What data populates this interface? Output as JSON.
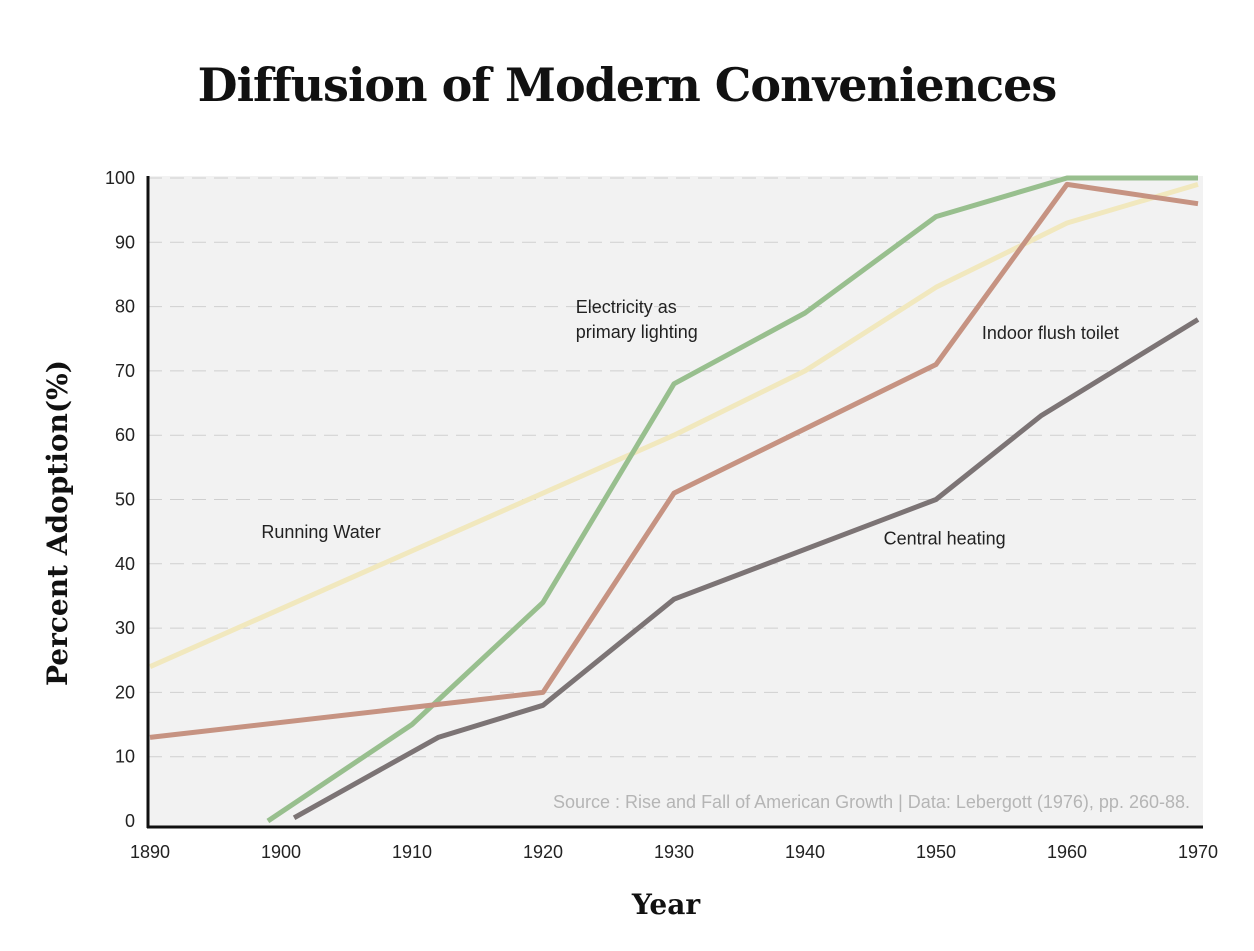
{
  "chart_data": {
    "type": "line",
    "title": "Diffusion of Modern Conveniences",
    "xlabel": "Year",
    "ylabel": "Percent Adoption(%)",
    "xlim": [
      1890,
      1970
    ],
    "ylim": [
      0,
      100
    ],
    "x_ticks": [
      1890,
      1900,
      1910,
      1920,
      1930,
      1940,
      1950,
      1960,
      1970
    ],
    "y_ticks": [
      0,
      10,
      20,
      30,
      40,
      50,
      60,
      70,
      80,
      90,
      100
    ],
    "grid": "horizontal dashed",
    "background": "#f2f2f2",
    "source": "Source : Rise and Fall of American Growth  |  Data: Lebergott (1976), pp. 260-88.",
    "series": [
      {
        "name": "Running Water",
        "color": "#f1e8be",
        "points": [
          [
            1890,
            24
          ],
          [
            1900,
            33
          ],
          [
            1910,
            42
          ],
          [
            1920,
            51
          ],
          [
            1930,
            60
          ],
          [
            1940,
            70
          ],
          [
            1950,
            83
          ],
          [
            1960,
            93
          ],
          [
            1970,
            99
          ]
        ]
      },
      {
        "name": "Electricity as primary lighting",
        "color": "#98bf8e",
        "points": [
          [
            1899,
            0
          ],
          [
            1910,
            15
          ],
          [
            1920,
            34
          ],
          [
            1930,
            68
          ],
          [
            1940,
            79
          ],
          [
            1950,
            94
          ],
          [
            1960,
            100
          ],
          [
            1970,
            100
          ]
        ]
      },
      {
        "name": "Indoor flush toilet",
        "color": "#c69382",
        "points": [
          [
            1890,
            13
          ],
          [
            1920,
            20
          ],
          [
            1930,
            51
          ],
          [
            1950,
            71
          ],
          [
            1960,
            99
          ],
          [
            1970,
            96
          ]
        ]
      },
      {
        "name": "Central heating",
        "color": "#7c7475",
        "points": [
          [
            1901,
            0.5
          ],
          [
            1912,
            13
          ],
          [
            1920,
            18
          ],
          [
            1930,
            34.5
          ],
          [
            1950,
            50
          ],
          [
            1958,
            63
          ],
          [
            1970,
            78
          ]
        ]
      }
    ],
    "annotations": [
      {
        "id": "running-water",
        "lines": [
          "Running Water"
        ],
        "x": 1898.5,
        "y": 44
      },
      {
        "id": "electricity",
        "lines": [
          "Electricity as",
          "primary lighting"
        ],
        "x": 1922.5,
        "y": 79
      },
      {
        "id": "flush-toilet",
        "lines": [
          "Indoor flush toilet"
        ],
        "x": 1953.5,
        "y": 75
      },
      {
        "id": "central-heating",
        "lines": [
          "Central heating"
        ],
        "x": 1946,
        "y": 43
      }
    ]
  }
}
